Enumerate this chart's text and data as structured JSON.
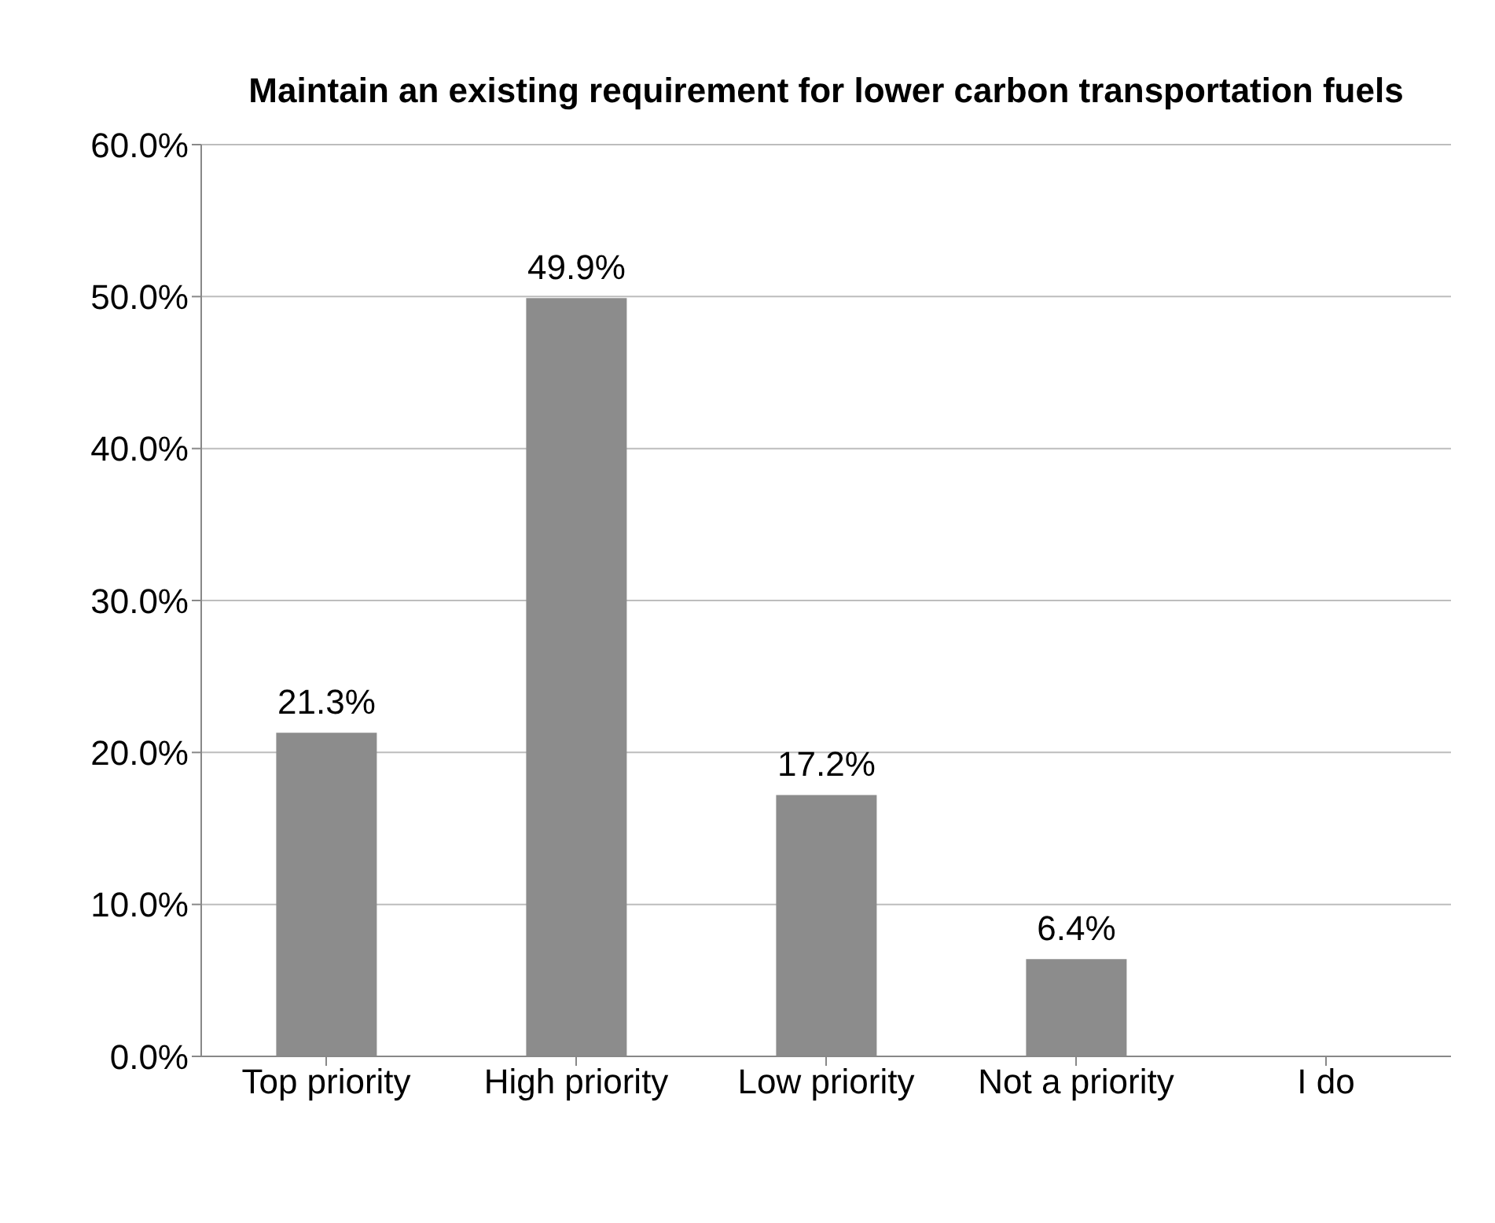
{
  "chart_data": {
    "type": "bar",
    "title": "Maintain an existing requirement for lower carbon transportation fuels",
    "categories": [
      "Top priority",
      "High priority",
      "Low priority",
      "Not a priority",
      "I do"
    ],
    "values": [
      21.3,
      49.9,
      17.2,
      6.4,
      null
    ],
    "value_labels": [
      "21.3%",
      "49.9%",
      "17.2%",
      "6.4%",
      null
    ],
    "color": "#8c8c8c",
    "ylim": [
      0,
      60
    ],
    "yticks": [
      {
        "value": 0,
        "label": "0.0%"
      },
      {
        "value": 10,
        "label": "10.0%"
      },
      {
        "value": 20,
        "label": "20.0%"
      },
      {
        "value": 30,
        "label": "30.0%"
      },
      {
        "value": 40,
        "label": "40.0%"
      },
      {
        "value": 50,
        "label": "50.0%"
      },
      {
        "value": 60,
        "label": "60.0%"
      }
    ],
    "grid": "y"
  }
}
